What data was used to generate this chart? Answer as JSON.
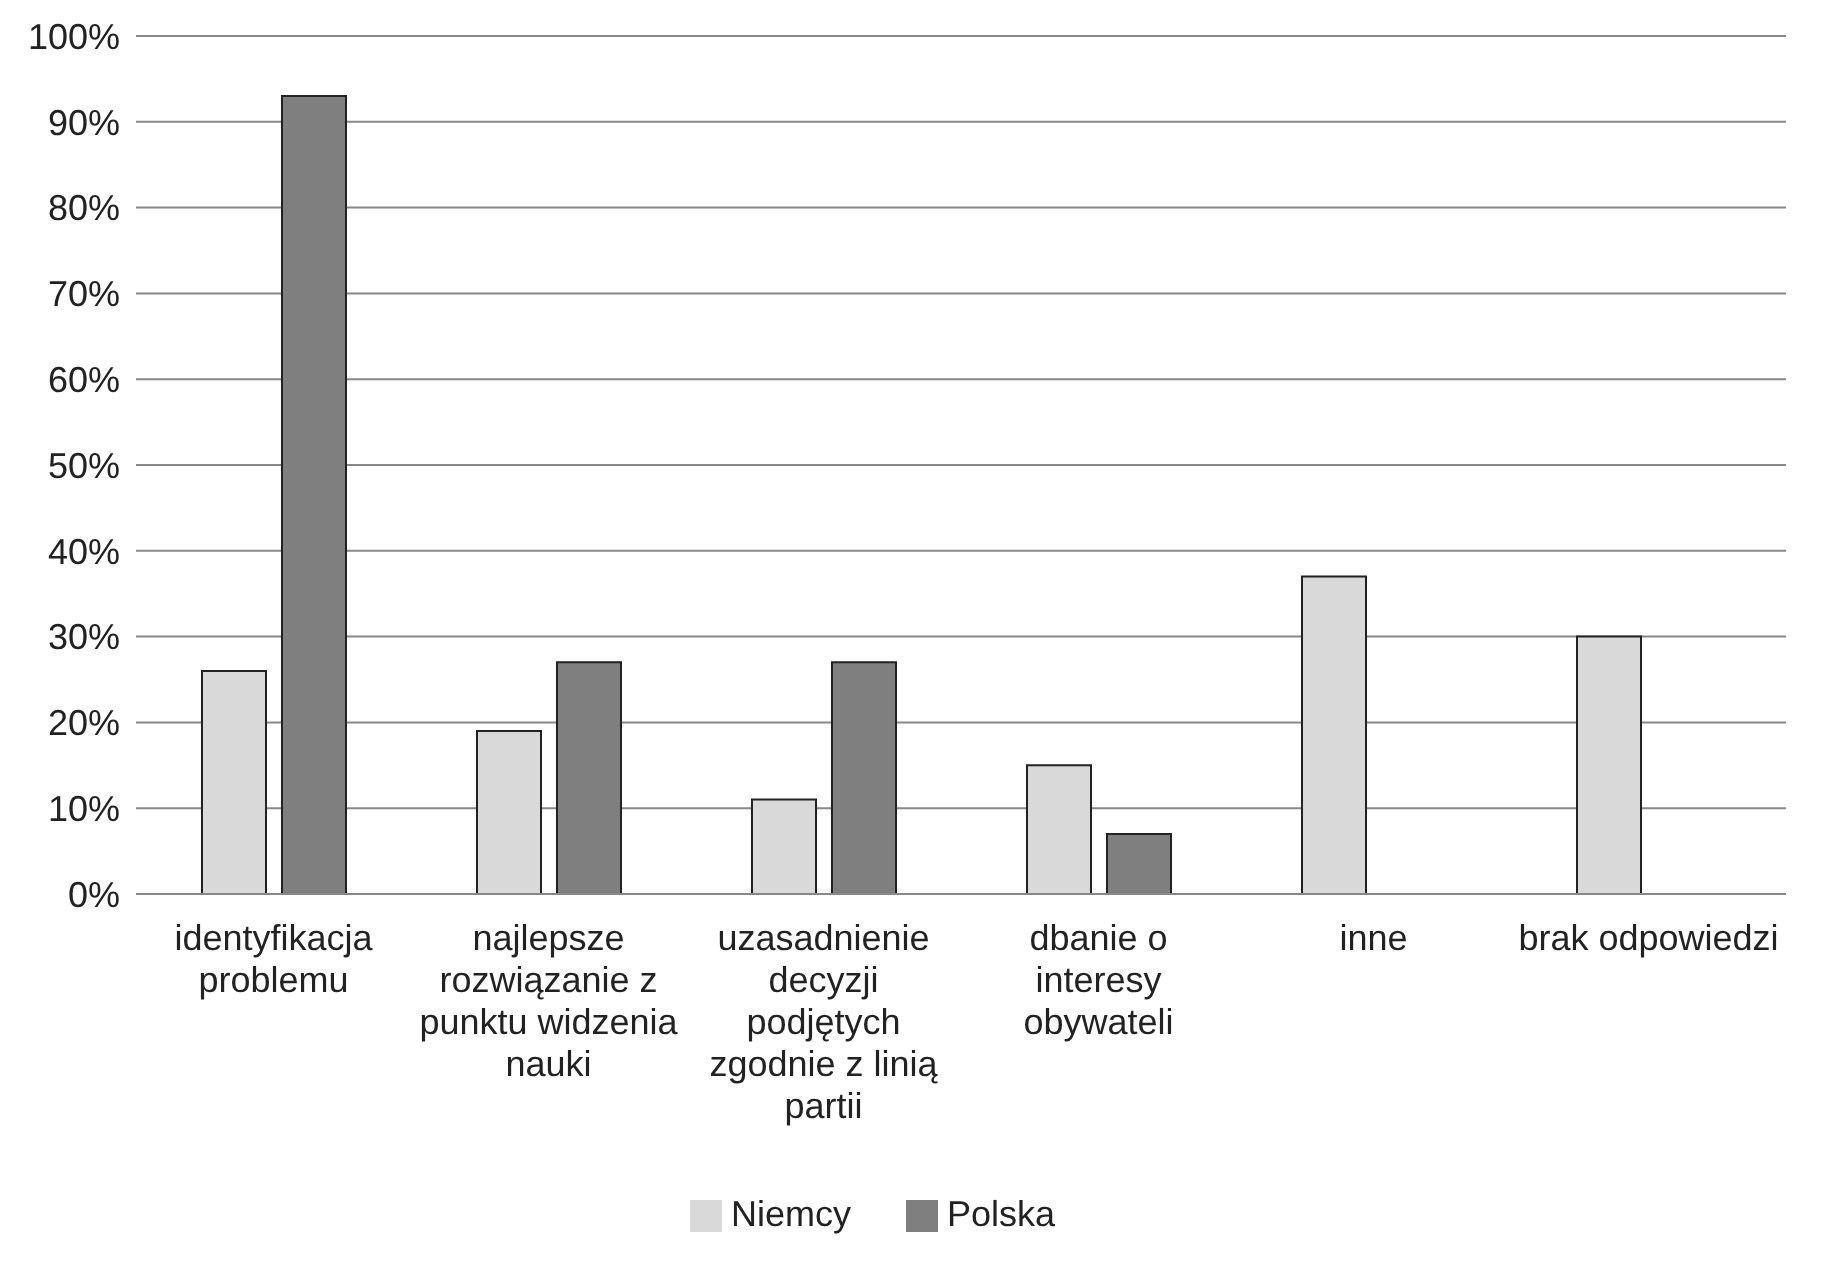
{
  "chart_data": {
    "type": "bar",
    "categories": [
      "identyfikacja problemu",
      "najlepsze rozwiązanie z punktu widzenia nauki",
      "uzasadnienie decyzji podjętych zgodnie z linią partii",
      "dbanie o interesy obywateli",
      "inne",
      "brak odpowiedzi"
    ],
    "series": [
      {
        "name": "Niemcy",
        "color": "#d9d9d9",
        "values": [
          26,
          19,
          11,
          15,
          37,
          30
        ]
      },
      {
        "name": "Polska",
        "color": "#7f7f7f",
        "values": [
          93,
          27,
          27,
          7,
          null,
          null
        ]
      }
    ],
    "ylim": [
      0,
      100
    ],
    "yticks": [
      {
        "value": 0,
        "label": "0%"
      },
      {
        "value": 10,
        "label": "10%"
      },
      {
        "value": 20,
        "label": "20%"
      },
      {
        "value": 30,
        "label": "30%"
      },
      {
        "value": 40,
        "label": "40%"
      },
      {
        "value": 50,
        "label": "50%"
      },
      {
        "value": 60,
        "label": "60%"
      },
      {
        "value": 70,
        "label": "70%"
      },
      {
        "value": 80,
        "label": "80%"
      },
      {
        "value": 90,
        "label": "90%"
      },
      {
        "value": 100,
        "label": "100%"
      }
    ],
    "grid": "y",
    "legend": "bottom"
  }
}
